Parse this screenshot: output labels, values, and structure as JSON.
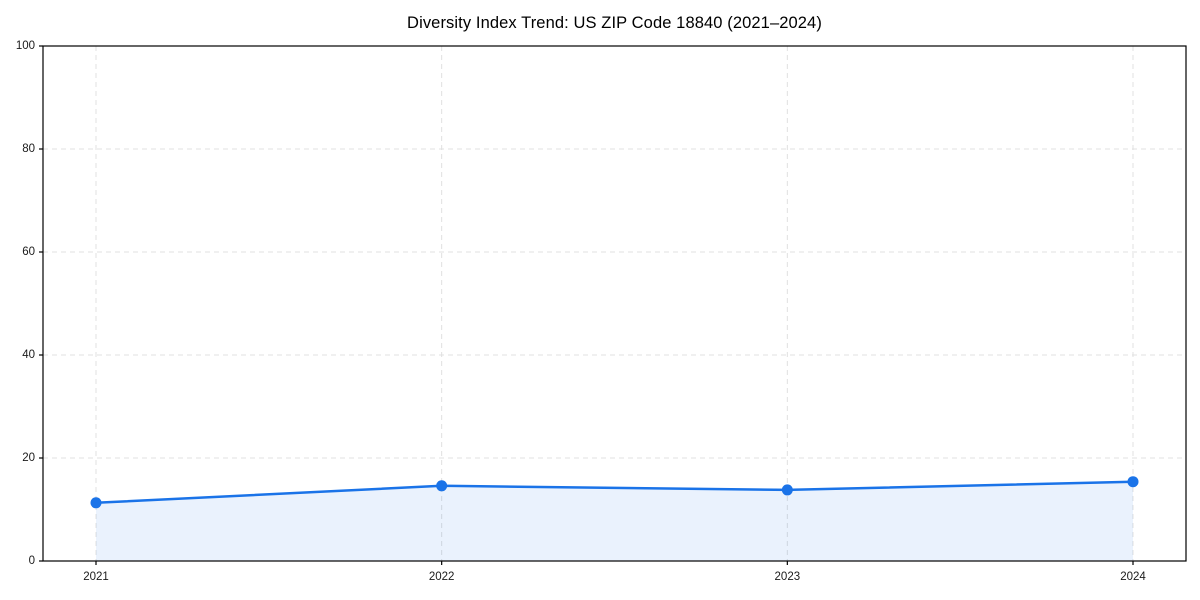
{
  "chart_data": {
    "type": "area",
    "title": "Diversity Index Trend: US ZIP Code 18840 (2021–2024)",
    "categories": [
      "2021",
      "2022",
      "2023",
      "2024"
    ],
    "series": [
      {
        "name": "Diversity Index",
        "values": [
          11.3,
          14.6,
          13.8,
          15.4
        ]
      }
    ],
    "xlabel": "",
    "ylabel": "",
    "ylim": [
      0,
      100
    ],
    "yticks": [
      0,
      20,
      40,
      60,
      80,
      100
    ],
    "grid": true,
    "grid_style": "dashed",
    "legend": "none",
    "marker": "circle",
    "fill_opacity": 0.09,
    "colors": {
      "line": "#1a73e8",
      "fill": "#e9f1fd",
      "grid": "#e0e0e0",
      "axis": "#000000",
      "text": "#1a1a1a",
      "background": "#ffffff"
    }
  }
}
